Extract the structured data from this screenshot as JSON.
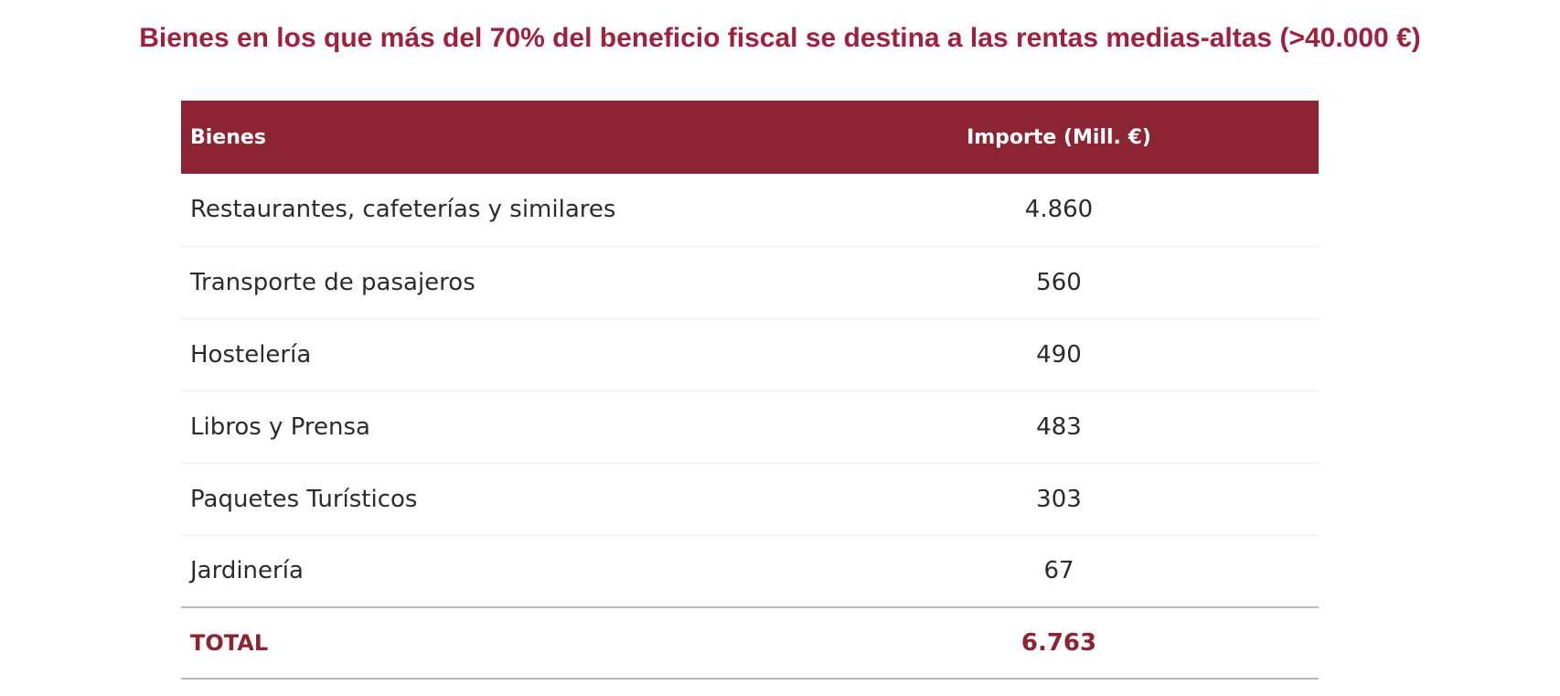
{
  "title": "Bienes en los que más del 70% del beneficio fiscal se destina a las rentas medias-altas (>40.000 €)",
  "colors": {
    "title": "#a0213e",
    "header_background": "#8c2433",
    "total_text": "#8c2433"
  },
  "table": {
    "headers": {
      "label": "Bienes",
      "value": "Importe (Mill. €)"
    },
    "rows": [
      {
        "label": "Restaurantes, cafeterías y similares",
        "value": "4.860"
      },
      {
        "label": "Transporte de pasajeros",
        "value": "560"
      },
      {
        "label": "Hostelería",
        "value": "490"
      },
      {
        "label": "Libros y Prensa",
        "value": "483"
      },
      {
        "label": "Paquetes Turísticos",
        "value": "303"
      },
      {
        "label": "Jardinería",
        "value": "67"
      }
    ],
    "total": {
      "label": "TOTAL",
      "value": "6.763"
    }
  }
}
